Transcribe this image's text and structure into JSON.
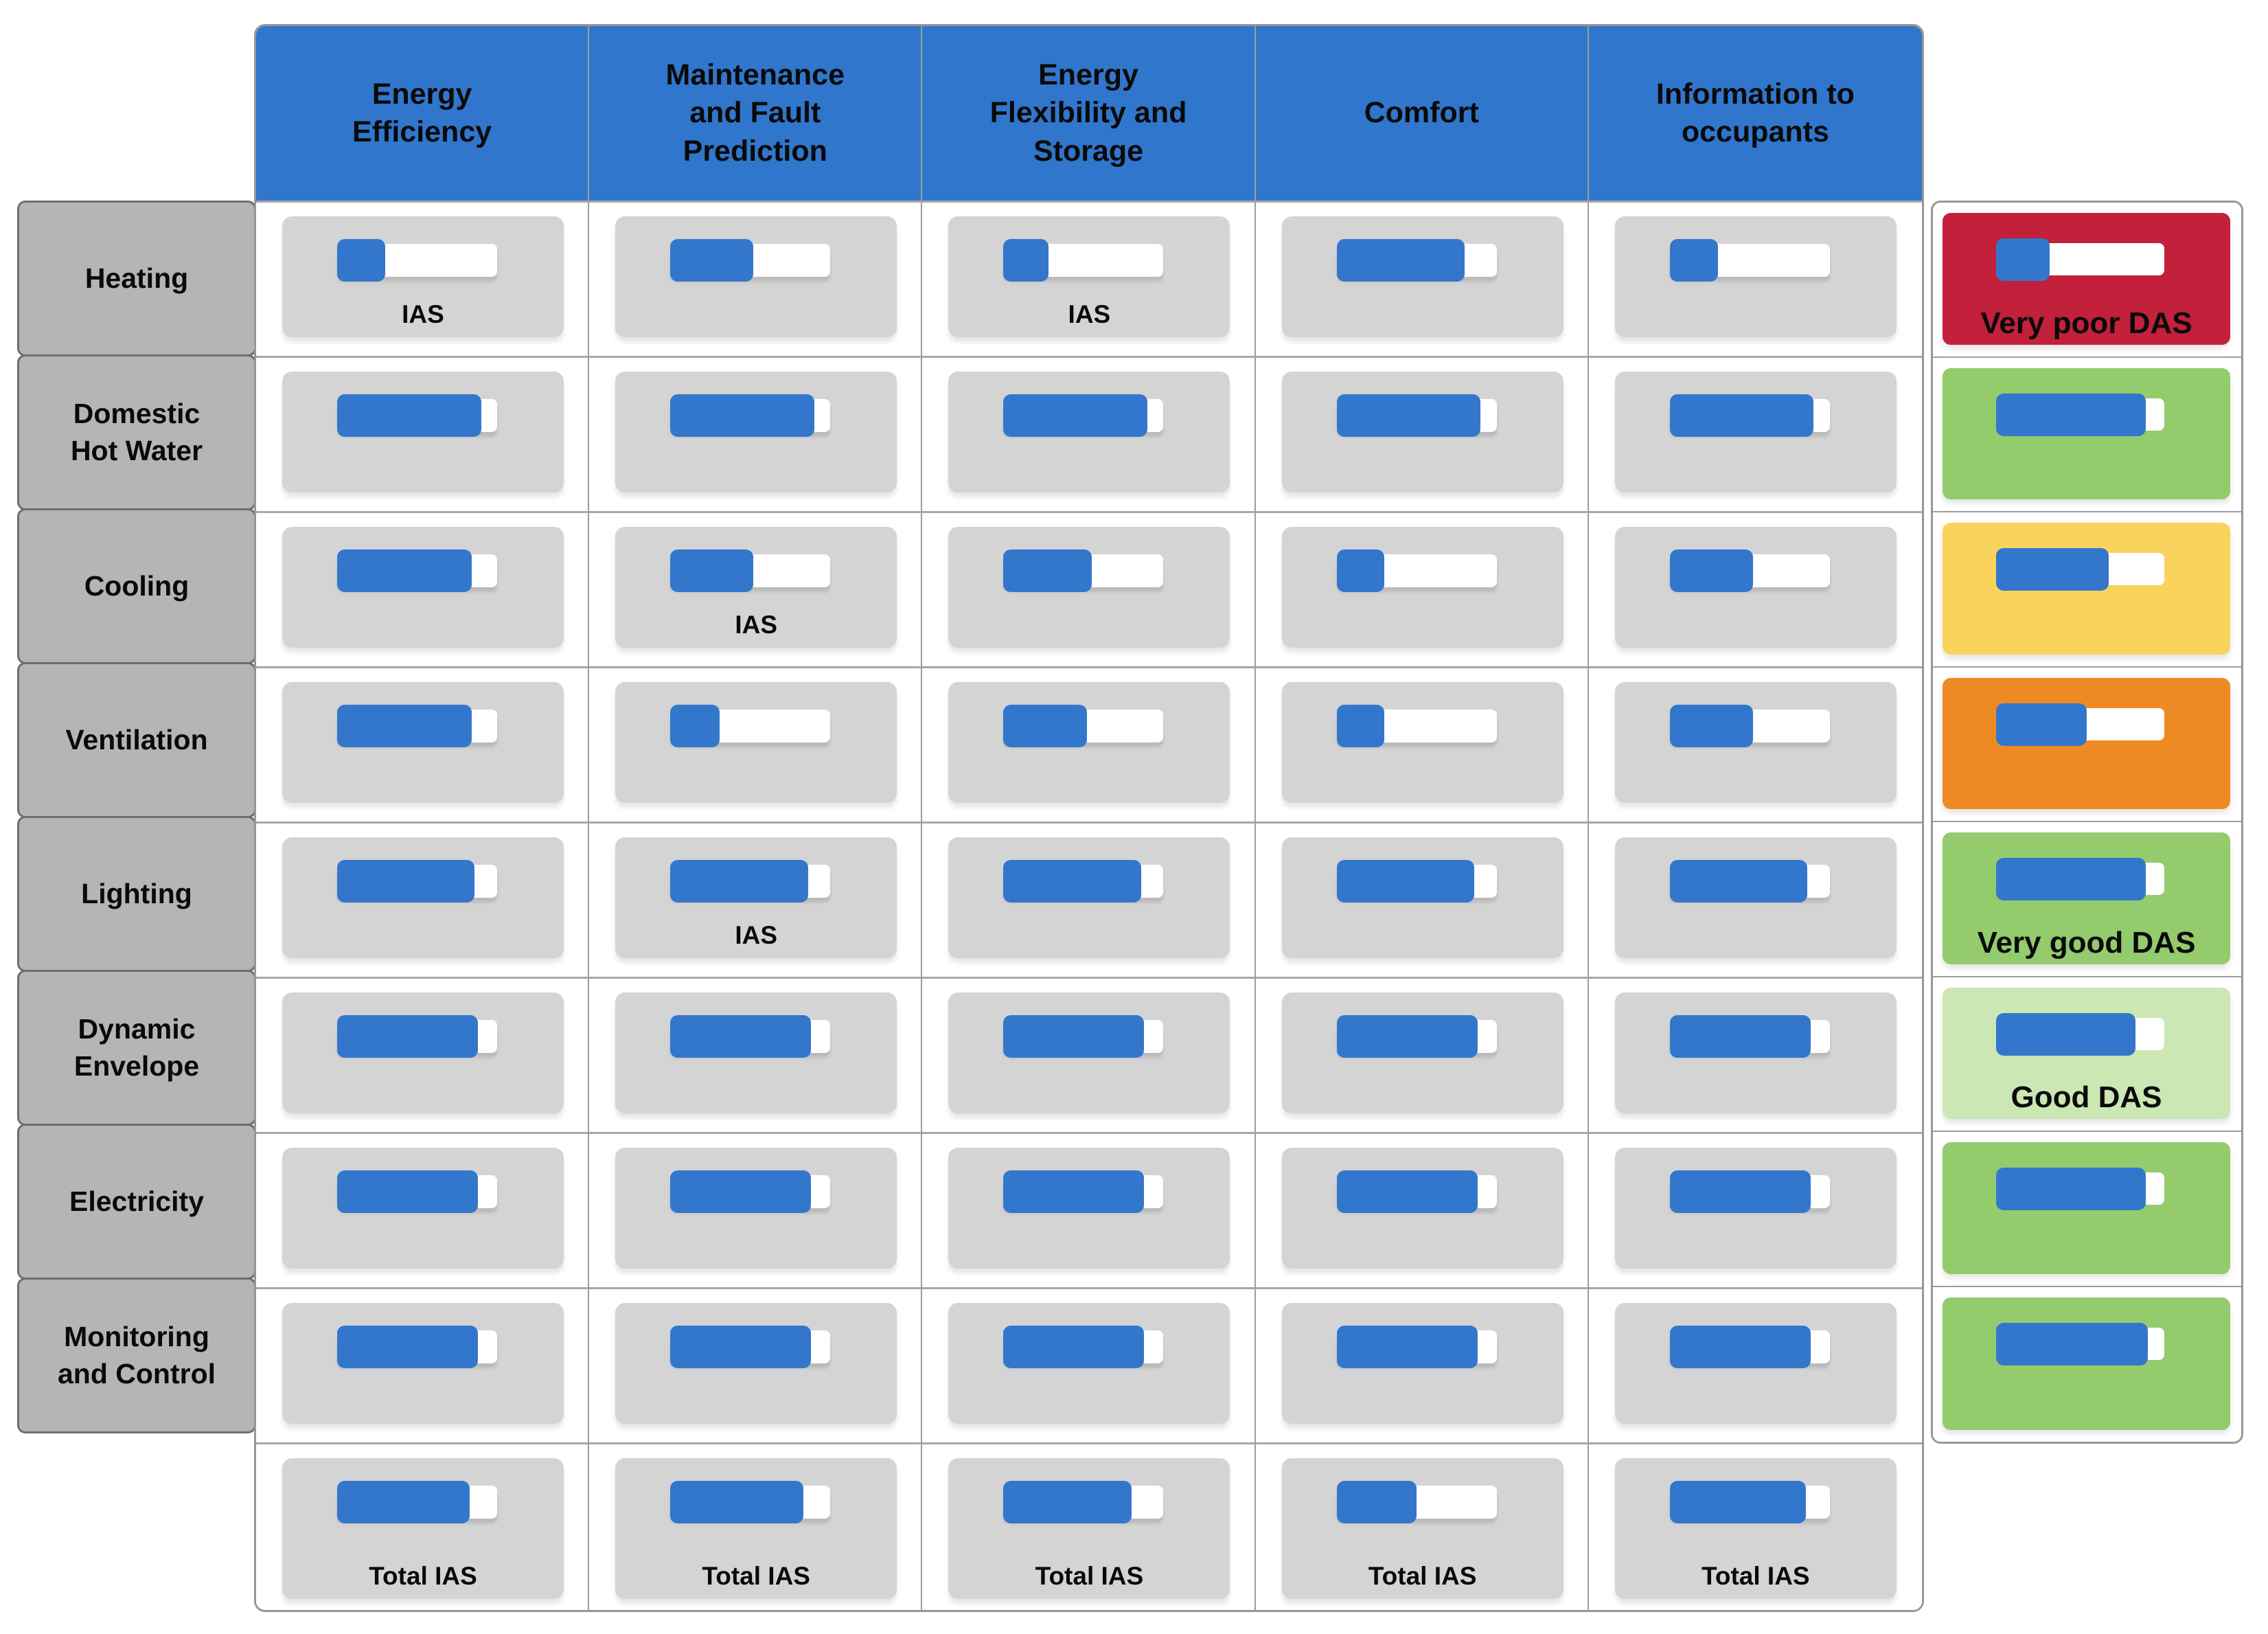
{
  "colors": {
    "header_blue": "#3076cc",
    "bar_blue": "#3377cc",
    "cell_grey": "#d4d4d4",
    "row_label_grey": "#b5b5b5",
    "grid_grey": "#9d9d9d",
    "das_red": "#c2203b",
    "das_green": "#93cb6d",
    "das_yellow": "#fad35f",
    "das_orange": "#ee8a24",
    "das_light_green": "#cbe7b4",
    "track_white": "#ffffff"
  },
  "columns": [
    {
      "label": "Energy\nEfficiency"
    },
    {
      "label": "Maintenance\nand Fault\nPrediction"
    },
    {
      "label": "Energy\nFlexibility and\nStorage"
    },
    {
      "label": "Comfort"
    },
    {
      "label": "Information to\noccupants"
    }
  ],
  "rows": [
    {
      "label": "Heating",
      "cells": [
        {
          "fill": 0.3,
          "label": "IAS"
        },
        {
          "fill": 0.52,
          "label": ""
        },
        {
          "fill": 0.28,
          "label": "IAS"
        },
        {
          "fill": 0.8,
          "label": ""
        },
        {
          "fill": 0.3,
          "label": ""
        }
      ],
      "das": {
        "fill": 0.32,
        "color": "#c2203b",
        "label": "Very poor DAS"
      }
    },
    {
      "label": "Domestic\nHot Water",
      "cells": [
        {
          "fill": 0.9,
          "label": ""
        },
        {
          "fill": 0.9,
          "label": ""
        },
        {
          "fill": 0.9,
          "label": ""
        },
        {
          "fill": 0.9,
          "label": ""
        },
        {
          "fill": 0.9,
          "label": ""
        }
      ],
      "das": {
        "fill": 0.89,
        "color": "#93cb6d",
        "label": ""
      }
    },
    {
      "label": "Cooling",
      "cells": [
        {
          "fill": 0.84,
          "label": ""
        },
        {
          "fill": 0.52,
          "label": "IAS"
        },
        {
          "fill": 0.55,
          "label": ""
        },
        {
          "fill": 0.3,
          "label": ""
        },
        {
          "fill": 0.52,
          "label": ""
        }
      ],
      "das": {
        "fill": 0.67,
        "color": "#fad35f",
        "label": ""
      }
    },
    {
      "label": "Ventilation",
      "cells": [
        {
          "fill": 0.84,
          "label": ""
        },
        {
          "fill": 0.31,
          "label": ""
        },
        {
          "fill": 0.52,
          "label": ""
        },
        {
          "fill": 0.3,
          "label": ""
        },
        {
          "fill": 0.52,
          "label": ""
        }
      ],
      "das": {
        "fill": 0.54,
        "color": "#ee8a24",
        "label": ""
      }
    },
    {
      "label": "Lighting",
      "cells": [
        {
          "fill": 0.86,
          "label": ""
        },
        {
          "fill": 0.86,
          "label": "IAS"
        },
        {
          "fill": 0.86,
          "label": ""
        },
        {
          "fill": 0.86,
          "label": ""
        },
        {
          "fill": 0.86,
          "label": ""
        }
      ],
      "das": {
        "fill": 0.89,
        "color": "#93cb6d",
        "label": "Very good DAS"
      }
    },
    {
      "label": "Dynamic\nEnvelope",
      "cells": [
        {
          "fill": 0.88,
          "label": ""
        },
        {
          "fill": 0.88,
          "label": ""
        },
        {
          "fill": 0.88,
          "label": ""
        },
        {
          "fill": 0.88,
          "label": ""
        },
        {
          "fill": 0.88,
          "label": ""
        }
      ],
      "das": {
        "fill": 0.83,
        "color": "#cbe7b4",
        "label": "Good DAS"
      }
    },
    {
      "label": "Electricity",
      "cells": [
        {
          "fill": 0.88,
          "label": ""
        },
        {
          "fill": 0.88,
          "label": ""
        },
        {
          "fill": 0.88,
          "label": ""
        },
        {
          "fill": 0.88,
          "label": ""
        },
        {
          "fill": 0.88,
          "label": ""
        }
      ],
      "das": {
        "fill": 0.89,
        "color": "#93cb6d",
        "label": ""
      }
    },
    {
      "label": "Monitoring\nand Control",
      "cells": [
        {
          "fill": 0.88,
          "label": ""
        },
        {
          "fill": 0.88,
          "label": ""
        },
        {
          "fill": 0.88,
          "label": ""
        },
        {
          "fill": 0.88,
          "label": ""
        },
        {
          "fill": 0.88,
          "label": ""
        }
      ],
      "das": {
        "fill": 0.9,
        "color": "#93cb6d",
        "label": ""
      }
    }
  ],
  "footer": {
    "cells": [
      {
        "fill": 0.83,
        "label": "Total IAS"
      },
      {
        "fill": 0.83,
        "label": "Total IAS"
      },
      {
        "fill": 0.8,
        "label": "Total IAS"
      },
      {
        "fill": 0.5,
        "label": "Total IAS"
      },
      {
        "fill": 0.85,
        "label": "Total IAS"
      }
    ]
  }
}
